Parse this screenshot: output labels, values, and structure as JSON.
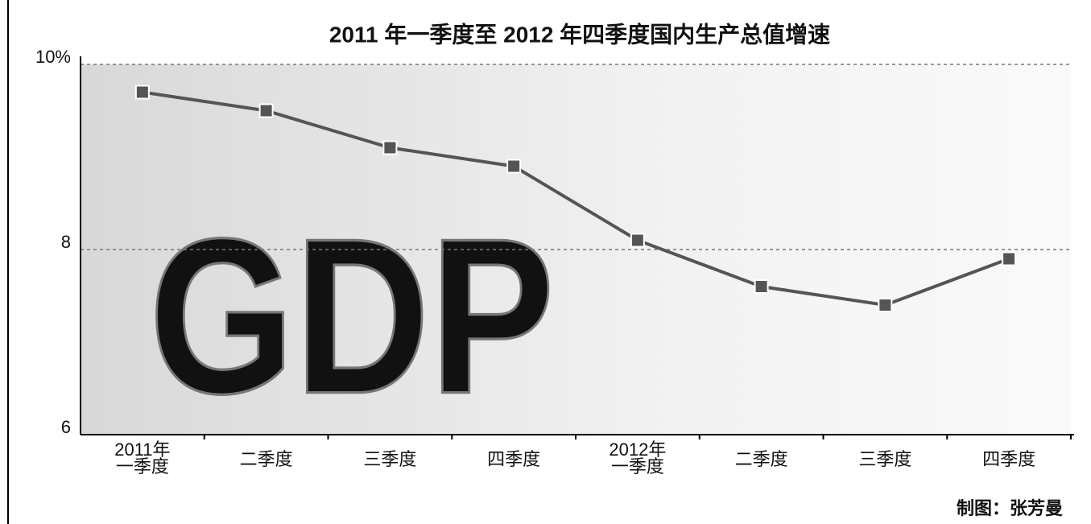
{
  "chart_data": {
    "type": "line",
    "title": "2011 年一季度至 2012 年四季度国内生产总值增速",
    "categories": [
      [
        "2011年",
        "一季度"
      ],
      [
        "二季度"
      ],
      [
        "三季度"
      ],
      [
        "四季度"
      ],
      [
        "2012年",
        "一季度"
      ],
      [
        "二季度"
      ],
      [
        "三季度"
      ],
      [
        "四季度"
      ]
    ],
    "series": [
      {
        "name": null,
        "color": "#555555",
        "values": [
          9.7,
          9.5,
          9.1,
          8.9,
          8.1,
          7.6,
          7.4,
          7.9
        ]
      }
    ],
    "ylim": [
      6,
      10
    ],
    "yticks": [
      6,
      8,
      {
        "value": 10,
        "label": "10%"
      }
    ],
    "grid": true,
    "watermark": "GDP",
    "credit": "制图：张芳曼"
  }
}
